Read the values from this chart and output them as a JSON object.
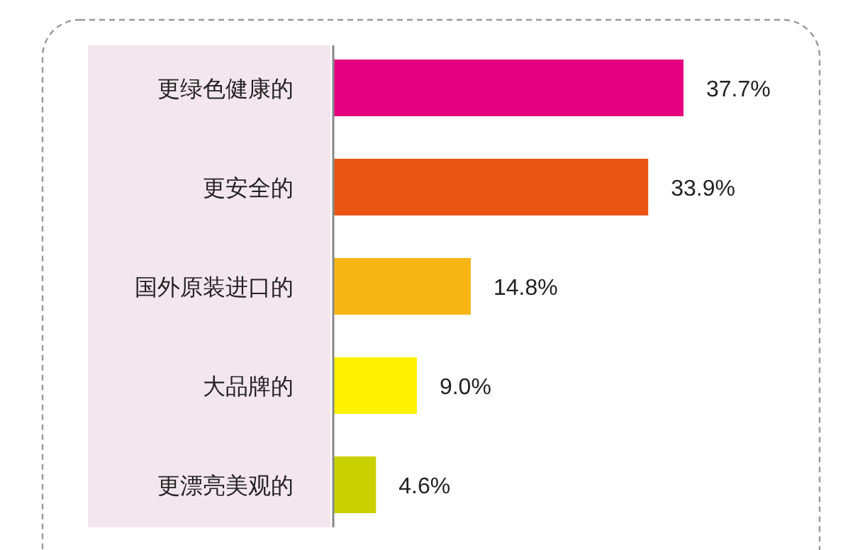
{
  "chart_data": {
    "type": "bar",
    "orientation": "horizontal",
    "categories": [
      "更绿色健康的",
      "更安全的",
      "国外原装进口的",
      "大品牌的",
      "更漂亮美观的"
    ],
    "values": [
      37.7,
      33.9,
      14.8,
      9.0,
      4.6
    ],
    "colors": [
      "#e4007f",
      "#ea5514",
      "#f8b615",
      "#fff100",
      "#c9d200"
    ],
    "value_labels": [
      "37.7%",
      "33.9%",
      "14.8%",
      "9.0%",
      "4.6%"
    ]
  }
}
